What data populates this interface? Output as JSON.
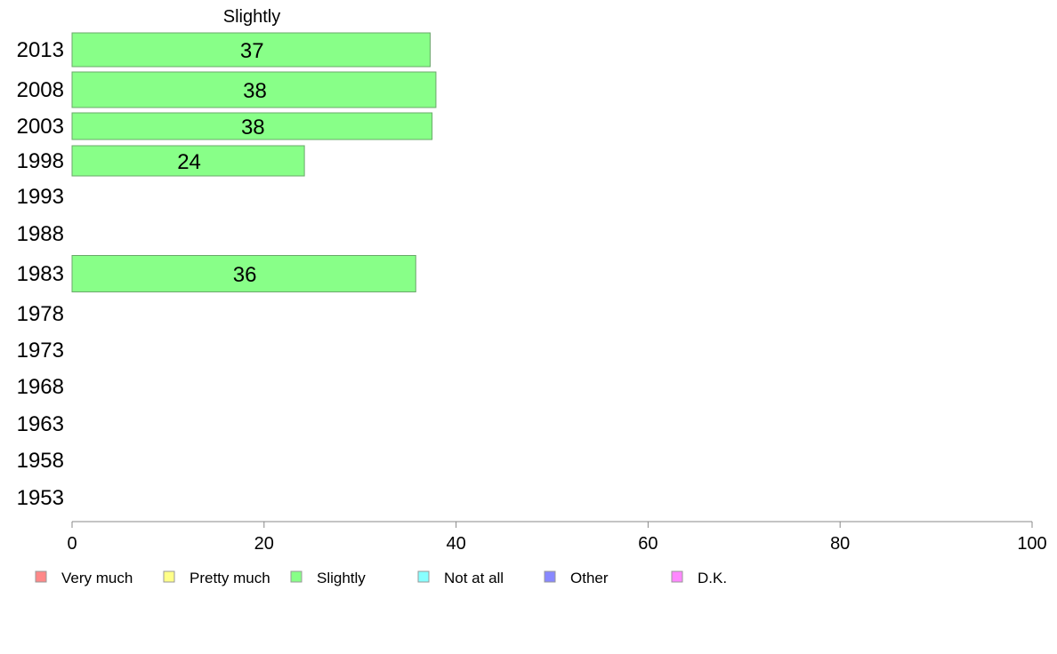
{
  "chart_data": {
    "type": "bar",
    "orientation": "horizontal",
    "column_title": "Slightly",
    "categories": [
      "2013",
      "2008",
      "2003",
      "1998",
      "1993",
      "1988",
      "1983",
      "1978",
      "1973",
      "1968",
      "1963",
      "1958",
      "1953"
    ],
    "series": [
      {
        "name": "Slightly",
        "color": "#88ff88",
        "values": [
          37.3,
          37.9,
          37.5,
          24.2,
          null,
          null,
          35.8,
          null,
          null,
          null,
          null,
          null,
          null
        ],
        "labels": [
          "37",
          "38",
          "38",
          "24",
          "",
          "",
          "36",
          "",
          "",
          "",
          "",
          "",
          ""
        ]
      }
    ],
    "xlim": [
      0,
      100
    ],
    "xticks": [
      "0",
      "20",
      "40",
      "60",
      "80",
      "100"
    ],
    "grid": false,
    "legend_position": "bottom",
    "legend": [
      {
        "label": "Very much",
        "color": "#ff8888"
      },
      {
        "label": "Pretty much",
        "color": "#ffff88"
      },
      {
        "label": "Slightly",
        "color": "#88ff88"
      },
      {
        "label": "Not at all",
        "color": "#88ffff"
      },
      {
        "label": "Other",
        "color": "#8888ff"
      },
      {
        "label": "D.K.",
        "color": "#ff88ff"
      }
    ]
  }
}
